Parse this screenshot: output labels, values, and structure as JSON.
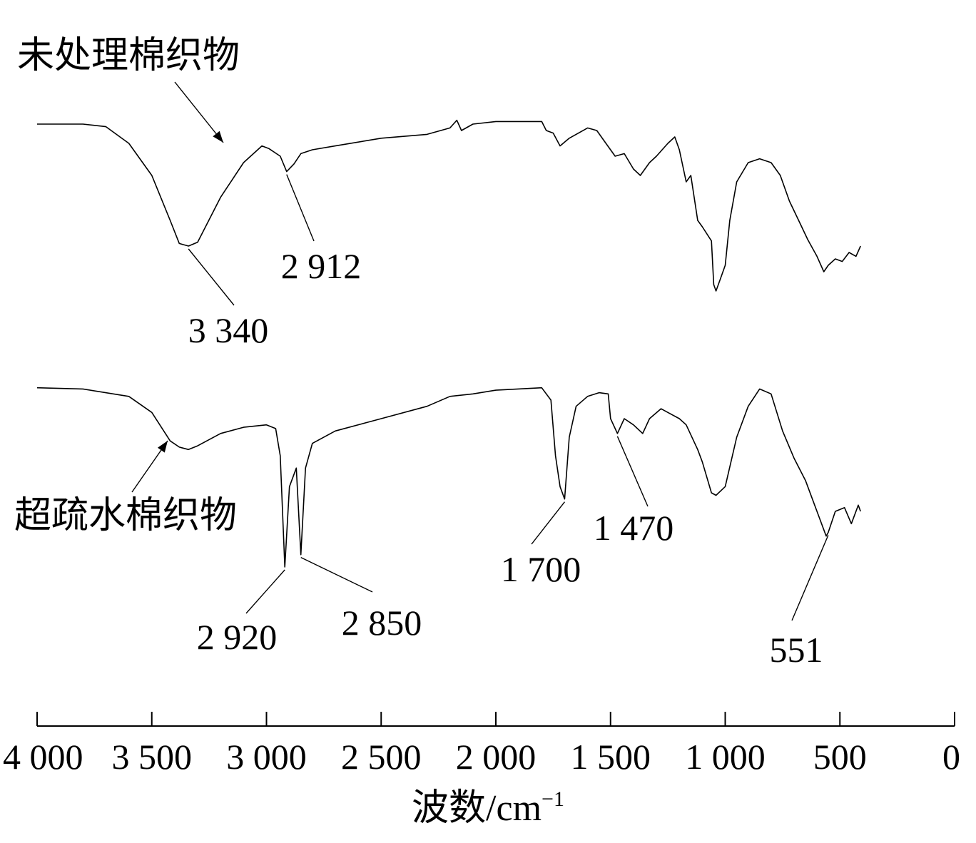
{
  "chart_data": {
    "type": "line",
    "title": "",
    "xlabel": "波数/cm",
    "xlabel_sup": "−1",
    "ylabel": "",
    "xlim": [
      4000,
      0
    ],
    "x_reversed": true,
    "x_ticks": [
      4000,
      3500,
      3000,
      2500,
      2000,
      1500,
      1000,
      500,
      0
    ],
    "x_tick_labels": [
      "4 000",
      "3 500",
      "3 000",
      "2 500",
      "2 000",
      "1 500",
      "1 000",
      "500",
      "0"
    ],
    "y_axis_shown": false,
    "grid": false,
    "series": [
      {
        "name": "未处理棉织物",
        "color": "#000000",
        "points": [
          [
            4000,
            0.05
          ],
          [
            3800,
            0.05
          ],
          [
            3700,
            0.07
          ],
          [
            3600,
            0.2
          ],
          [
            3500,
            0.45
          ],
          [
            3420,
            0.8
          ],
          [
            3380,
            0.98
          ],
          [
            3340,
            1.0
          ],
          [
            3300,
            0.97
          ],
          [
            3200,
            0.62
          ],
          [
            3100,
            0.35
          ],
          [
            3020,
            0.22
          ],
          [
            2990,
            0.24
          ],
          [
            2940,
            0.3
          ],
          [
            2912,
            0.42
          ],
          [
            2880,
            0.36
          ],
          [
            2850,
            0.28
          ],
          [
            2800,
            0.25
          ],
          [
            2700,
            0.22
          ],
          [
            2500,
            0.16
          ],
          [
            2300,
            0.13
          ],
          [
            2200,
            0.08
          ],
          [
            2170,
            0.02
          ],
          [
            2150,
            0.1
          ],
          [
            2100,
            0.05
          ],
          [
            2000,
            0.03
          ],
          [
            1800,
            0.03
          ],
          [
            1780,
            0.1
          ],
          [
            1750,
            0.12
          ],
          [
            1720,
            0.22
          ],
          [
            1680,
            0.16
          ],
          [
            1600,
            0.08
          ],
          [
            1560,
            0.1
          ],
          [
            1520,
            0.2
          ],
          [
            1480,
            0.3
          ],
          [
            1440,
            0.28
          ],
          [
            1400,
            0.4
          ],
          [
            1370,
            0.45
          ],
          [
            1330,
            0.35
          ],
          [
            1300,
            0.3
          ],
          [
            1250,
            0.2
          ],
          [
            1220,
            0.15
          ],
          [
            1200,
            0.25
          ],
          [
            1170,
            0.5
          ],
          [
            1150,
            0.45
          ],
          [
            1120,
            0.8
          ],
          [
            1100,
            0.85
          ],
          [
            1060,
            0.96
          ],
          [
            1050,
            1.3
          ],
          [
            1040,
            1.35
          ],
          [
            1020,
            1.25
          ],
          [
            1000,
            1.15
          ],
          [
            980,
            0.8
          ],
          [
            950,
            0.5
          ],
          [
            900,
            0.35
          ],
          [
            850,
            0.32
          ],
          [
            800,
            0.35
          ],
          [
            760,
            0.45
          ],
          [
            720,
            0.65
          ],
          [
            680,
            0.8
          ],
          [
            640,
            0.95
          ],
          [
            600,
            1.08
          ],
          [
            570,
            1.2
          ],
          [
            551,
            1.15
          ],
          [
            520,
            1.1
          ],
          [
            490,
            1.12
          ],
          [
            460,
            1.05
          ],
          [
            430,
            1.08
          ],
          [
            410,
            1.0
          ]
        ]
      },
      {
        "name": "超疏水棉织物",
        "color": "#000000",
        "points": [
          [
            4000,
            0.05
          ],
          [
            3800,
            0.06
          ],
          [
            3600,
            0.12
          ],
          [
            3500,
            0.25
          ],
          [
            3420,
            0.48
          ],
          [
            3380,
            0.53
          ],
          [
            3340,
            0.55
          ],
          [
            3300,
            0.52
          ],
          [
            3200,
            0.42
          ],
          [
            3100,
            0.37
          ],
          [
            3000,
            0.35
          ],
          [
            2960,
            0.38
          ],
          [
            2940,
            0.6
          ],
          [
            2920,
            1.5
          ],
          [
            2900,
            0.85
          ],
          [
            2870,
            0.7
          ],
          [
            2850,
            1.4
          ],
          [
            2830,
            0.7
          ],
          [
            2800,
            0.5
          ],
          [
            2700,
            0.4
          ],
          [
            2500,
            0.3
          ],
          [
            2300,
            0.2
          ],
          [
            2200,
            0.12
          ],
          [
            2100,
            0.1
          ],
          [
            2000,
            0.07
          ],
          [
            1800,
            0.05
          ],
          [
            1760,
            0.15
          ],
          [
            1740,
            0.6
          ],
          [
            1720,
            0.85
          ],
          [
            1700,
            0.95
          ],
          [
            1680,
            0.45
          ],
          [
            1650,
            0.2
          ],
          [
            1600,
            0.12
          ],
          [
            1550,
            0.09
          ],
          [
            1510,
            0.1
          ],
          [
            1500,
            0.3
          ],
          [
            1470,
            0.42
          ],
          [
            1440,
            0.3
          ],
          [
            1400,
            0.35
          ],
          [
            1360,
            0.42
          ],
          [
            1330,
            0.3
          ],
          [
            1280,
            0.22
          ],
          [
            1250,
            0.25
          ],
          [
            1200,
            0.3
          ],
          [
            1170,
            0.35
          ],
          [
            1120,
            0.55
          ],
          [
            1100,
            0.65
          ],
          [
            1060,
            0.9
          ],
          [
            1040,
            0.92
          ],
          [
            1000,
            0.85
          ],
          [
            950,
            0.45
          ],
          [
            900,
            0.2
          ],
          [
            850,
            0.06
          ],
          [
            800,
            0.1
          ],
          [
            750,
            0.4
          ],
          [
            700,
            0.62
          ],
          [
            650,
            0.8
          ],
          [
            600,
            1.05
          ],
          [
            560,
            1.25
          ],
          [
            551,
            1.22
          ],
          [
            520,
            1.05
          ],
          [
            480,
            1.02
          ],
          [
            450,
            1.15
          ],
          [
            420,
            1.0
          ],
          [
            410,
            1.05
          ]
        ]
      }
    ],
    "annotations": [
      {
        "series": 0,
        "label": "3 340",
        "x": 3340
      },
      {
        "series": 0,
        "label": "2 912",
        "x": 2912
      },
      {
        "series": 1,
        "label": "2 920",
        "x": 2920
      },
      {
        "series": 1,
        "label": "2 850",
        "x": 2850
      },
      {
        "series": 1,
        "label": "1 700",
        "x": 1700
      },
      {
        "series": 1,
        "label": "1 470",
        "x": 1470
      },
      {
        "series": 1,
        "label": "551",
        "x": 551
      }
    ]
  }
}
